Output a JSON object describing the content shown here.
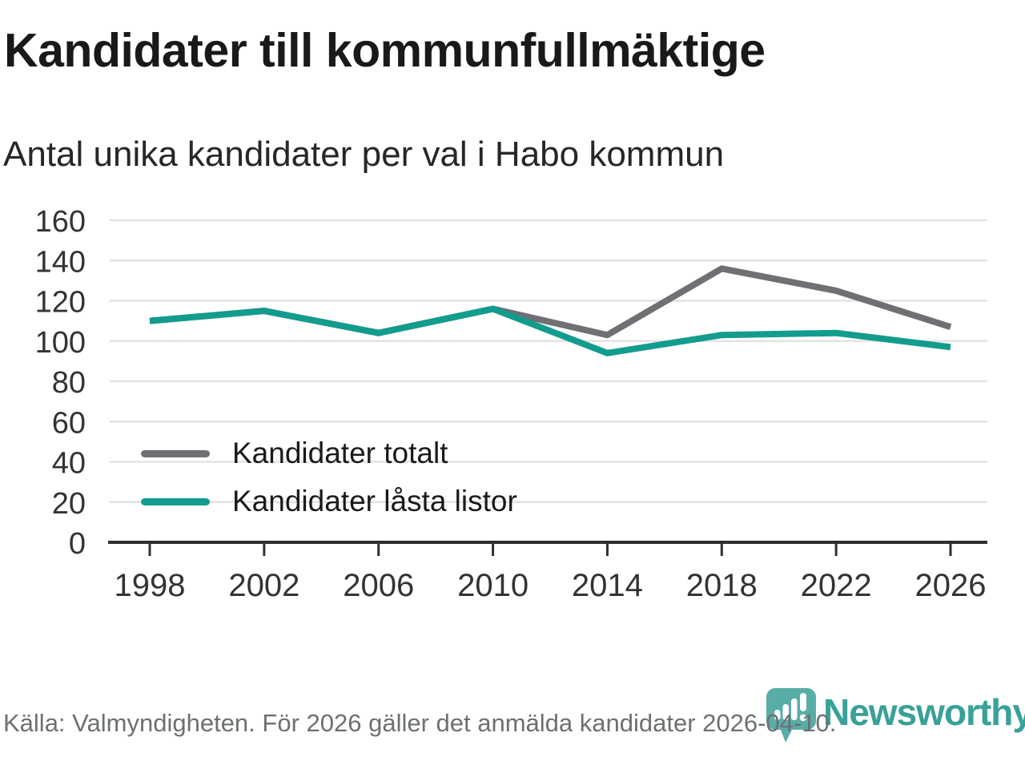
{
  "title": "Kandidater till kommunfullmäktige",
  "subtitle": "Antal unika kandidater per val i Habo kommun",
  "footer": {
    "source": "Källa: Valmyndigheten. För 2026 gäller det anmälda kandidater 2026-04-10."
  },
  "logo": {
    "brand": "Newsworthy",
    "icon": "newsworthy-pin-barchart-icon",
    "brand_color": "#38a198",
    "icon_color": "#4aa79f"
  },
  "colors": {
    "grid": "#e3e3e3",
    "axis": "#2f2f2f",
    "tick_label": "#333333",
    "series_total": "#6f6f74",
    "series_locked": "#129c8e"
  },
  "chart_data": {
    "type": "line",
    "title": "Kandidater till kommunfullmäktige",
    "subtitle": "Antal unika kandidater per val i Habo kommun",
    "categories": [
      "1998",
      "2002",
      "2006",
      "2010",
      "2014",
      "2018",
      "2022",
      "2026"
    ],
    "series": [
      {
        "name": "Kandidater totalt",
        "color": "#6f6f74",
        "values": [
          110,
          115,
          104,
          116,
          103,
          136,
          125,
          107
        ]
      },
      {
        "name": "Kandidater låsta listor",
        "color": "#129c8e",
        "values": [
          110,
          115,
          104,
          116,
          94,
          103,
          104,
          97
        ]
      }
    ],
    "xlabel": "",
    "ylabel": "",
    "ylim": [
      0,
      160
    ],
    "ytick_step": 20,
    "grid": true,
    "legend_position": "inside-left-bottom"
  }
}
